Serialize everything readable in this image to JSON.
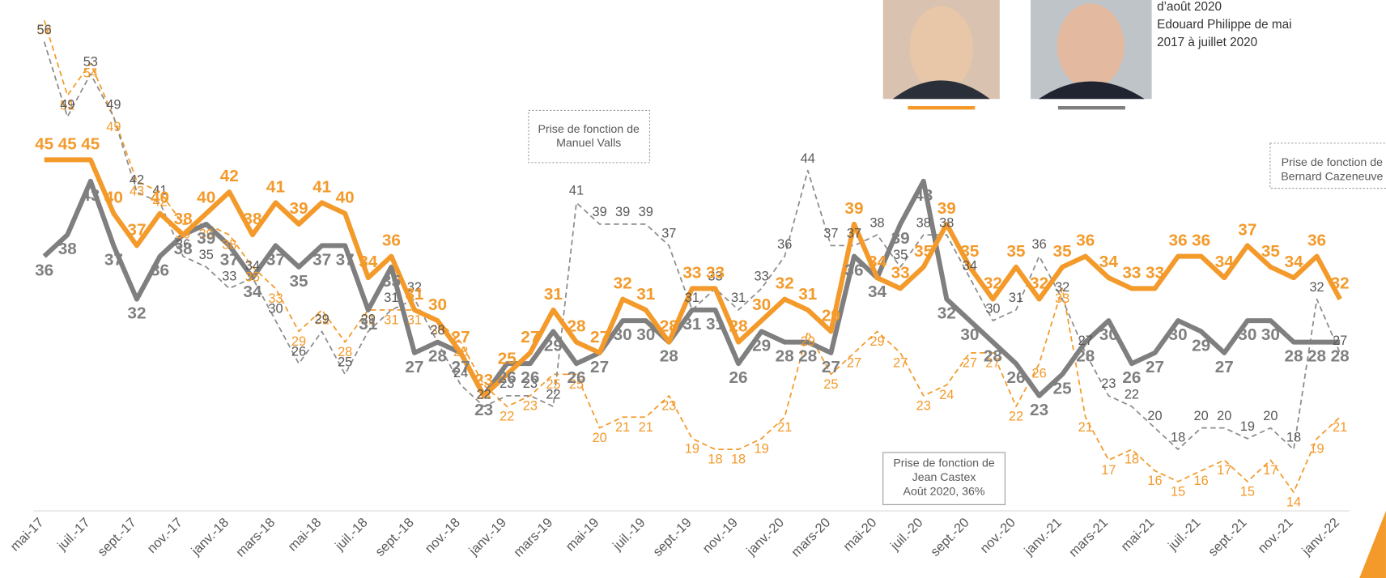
{
  "chart_data": {
    "type": "line",
    "categories": [
      "mai-17",
      null,
      "juil.-17",
      null,
      "sept.-17",
      null,
      "nov.-17",
      null,
      "janv.-18",
      null,
      "mars-18",
      null,
      "mai-18",
      null,
      "juil.-18",
      null,
      "sept.-18",
      null,
      "nov.-18",
      null,
      "janv.-19",
      null,
      "mars-19",
      null,
      "mai-19",
      null,
      "juil.-19",
      null,
      "sept.-19",
      null,
      "nov.-19",
      null,
      "janv.-20",
      null,
      "mars-20",
      null,
      "mai-20",
      null,
      "juil.-20",
      null,
      "sept.-20",
      null,
      "nov.-20",
      null,
      "janv.-21",
      null,
      "mars-21",
      null,
      "mai-21",
      null,
      "juil.-21",
      null,
      "sept.-21",
      null,
      "nov.-21",
      null,
      "janv.-22"
    ],
    "series": [
      {
        "color": "#f39a2b",
        "dashed": true,
        "values": [
          58,
          51,
          54,
          49,
          43,
          42,
          39,
          39,
          38,
          35,
          33,
          29,
          31,
          28,
          31,
          31,
          31,
          30,
          28,
          24,
          22,
          23,
          25,
          25,
          20,
          21,
          21,
          23,
          19,
          18,
          18,
          19,
          21,
          29,
          25,
          27,
          29,
          27,
          23,
          24,
          27,
          27,
          22,
          26,
          33,
          21,
          17,
          18,
          16,
          15,
          16,
          17,
          15,
          17,
          14,
          19,
          21
        ]
      },
      {
        "color": "#8c8c8c",
        "dashed": true,
        "values": [
          56,
          49,
          53,
          49,
          42,
          41,
          36,
          35,
          33,
          34,
          30,
          26,
          29,
          25,
          29,
          31,
          32,
          28,
          24,
          22,
          23,
          23,
          22,
          41,
          39,
          39,
          39,
          37,
          31,
          33,
          31,
          33,
          36,
          44,
          37,
          37,
          38,
          35,
          38,
          38,
          34,
          30,
          31,
          36,
          32,
          27,
          23,
          22,
          20,
          18,
          20,
          20,
          19,
          20,
          18,
          32,
          27
        ]
      },
      {
        "color": "#7f7f7f",
        "dashed": false,
        "values": [
          36,
          38,
          43,
          37,
          32,
          36,
          38,
          39,
          37,
          34,
          37,
          35,
          37,
          37,
          31,
          35,
          27,
          28,
          27,
          23,
          26,
          26,
          29,
          26,
          27,
          30,
          30,
          28,
          31,
          31,
          26,
          29,
          28,
          28,
          27,
          36,
          34,
          39,
          43,
          32,
          30,
          28,
          26,
          23,
          25,
          28,
          30,
          26,
          27,
          30,
          29,
          27,
          30,
          30,
          28,
          28,
          28
        ]
      },
      {
        "color": "#f39a2b",
        "dashed": false,
        "values": [
          45,
          45,
          45,
          40,
          37,
          40,
          38,
          40,
          42,
          38,
          41,
          39,
          41,
          40,
          34,
          36,
          31,
          30,
          27,
          23,
          25,
          27,
          31,
          28,
          27,
          32,
          31,
          28,
          33,
          33,
          28,
          30,
          32,
          31,
          29,
          39,
          34,
          33,
          35,
          39,
          35,
          32,
          35,
          32,
          35,
          36,
          34,
          33,
          33,
          36,
          36,
          34,
          37,
          35,
          34,
          36,
          32
        ]
      }
    ],
    "annotations": [
      {
        "lines": [
          "Prise de fonction de",
          "Manuel Valls"
        ]
      },
      {
        "lines": [
          "Prise de fonction de",
          "Bernard Cazeneuve"
        ]
      },
      {
        "lines": [
          "Prise de fonction de",
          "Jean Castex",
          "Août 2020, 36%"
        ]
      }
    ],
    "notes": [
      "d’août 2020",
      "Edouard Philippe de mai",
      "2017 à juillet 2020"
    ]
  }
}
